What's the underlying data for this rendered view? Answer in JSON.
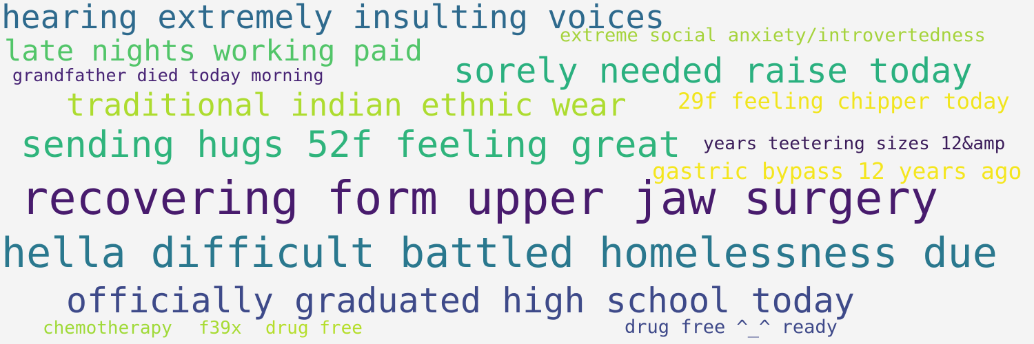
{
  "words": [
    {
      "text": "hearing extremely insulting voices",
      "color": "#2e6a8d"
    },
    {
      "text": "extreme social anxiety/introvertedness",
      "color": "#a5d33b"
    },
    {
      "text": "late nights working paid",
      "color": "#52c569"
    },
    {
      "text": "grandfather died today morning",
      "color": "#482475"
    },
    {
      "text": "sorely needed raise today",
      "color": "#2ab07f"
    },
    {
      "text": "traditional indian ethnic wear",
      "color": "#addc30"
    },
    {
      "text": "29f feeling chipper today",
      "color": "#f1e51d"
    },
    {
      "text": "sending hugs 52f feeling great",
      "color": "#2fb47c"
    },
    {
      "text": "years teetering sizes 12&amp",
      "color": "#3b1c5a"
    },
    {
      "text": "gastric bypass 12 years ago",
      "color": "#f4e61e"
    },
    {
      "text": "recovering form upper jaw surgery",
      "color": "#481b6d"
    },
    {
      "text": "hella difficult battled homelessness due",
      "color": "#2a788e"
    },
    {
      "text": "officially graduated high school today",
      "color": "#3e4a89"
    },
    {
      "text": "chemotherapy",
      "color": "#a0da39"
    },
    {
      "text": "f39x",
      "color": "#a8db34"
    },
    {
      "text": "drug free",
      "color": "#b5de2b"
    },
    {
      "text": "drug free ^_^ ready",
      "color": "#3e4989"
    }
  ]
}
